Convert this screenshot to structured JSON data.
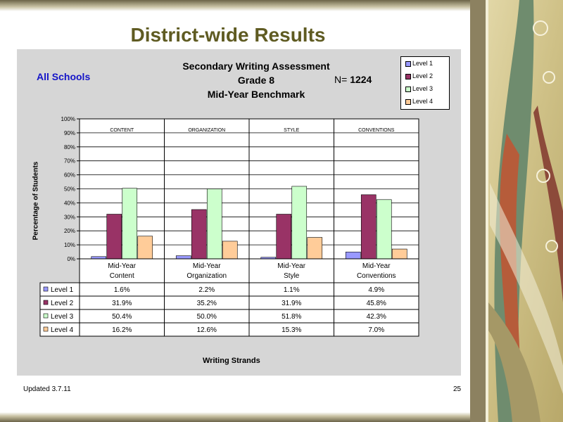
{
  "slide": {
    "title": "District-wide Results",
    "footer_left": "Updated  3.7.11",
    "page_number": "25"
  },
  "colors": {
    "level1": "#9999ff",
    "level2": "#993366",
    "level3": "#ccffcc",
    "level4": "#ffcc99",
    "chart_bg": "#d6d6d6",
    "title_color": "#5f5b22"
  },
  "chart_data": {
    "type": "bar",
    "title": "Secondary Writing Assessment",
    "subtitle_lines": [
      "Grade 8",
      "Mid-Year Benchmark"
    ],
    "scope_label": "All Schools",
    "n_label": "N=",
    "n_value": "1224",
    "xlabel": "Writing Strands",
    "ylabel": "Percentage of Students",
    "ylim": [
      0,
      100
    ],
    "y_ticks": [
      "0%",
      "10%",
      "20%",
      "30%",
      "40%",
      "50%",
      "60%",
      "70%",
      "80%",
      "90%",
      "100%"
    ],
    "grid": true,
    "legend_position": "top-right",
    "group_headers": [
      "CONTENT",
      "ORGANIZATION",
      "STYLE",
      "CONVENTIONS"
    ],
    "categories": [
      [
        "Mid-Year",
        "Content"
      ],
      [
        "Mid-Year",
        "Organization"
      ],
      [
        "Mid-Year",
        "Style"
      ],
      [
        "Mid-Year",
        "Conventions"
      ]
    ],
    "series": [
      {
        "name": "Level 1",
        "values": [
          1.6,
          2.2,
          1.1,
          4.9
        ],
        "labels": [
          "1.6%",
          "2.2%",
          "1.1%",
          "4.9%"
        ]
      },
      {
        "name": "Level 2",
        "values": [
          31.9,
          35.2,
          31.9,
          45.8
        ],
        "labels": [
          "31.9%",
          "35.2%",
          "31.9%",
          "45.8%"
        ]
      },
      {
        "name": "Level 3",
        "values": [
          50.4,
          50.0,
          51.8,
          42.3
        ],
        "labels": [
          "50.4%",
          "50.0%",
          "51.8%",
          "42.3%"
        ]
      },
      {
        "name": "Level 4",
        "values": [
          16.2,
          12.6,
          15.3,
          7.0
        ],
        "labels": [
          "16.2%",
          "12.6%",
          "15.3%",
          "7.0%"
        ]
      }
    ]
  }
}
